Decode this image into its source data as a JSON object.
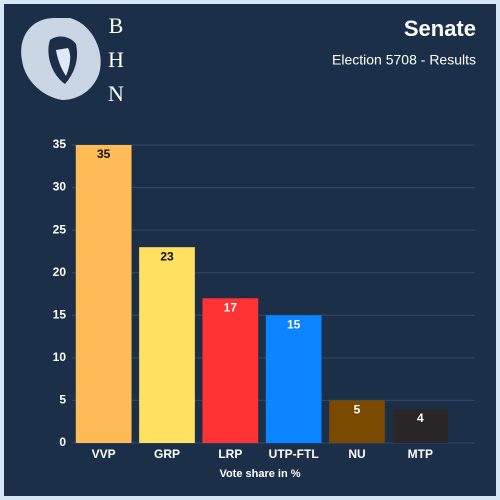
{
  "logo": {
    "letters": [
      "B",
      "H",
      "N"
    ]
  },
  "chart_data": {
    "type": "bar",
    "title": "Senate",
    "subtitle": "Election 5708 - Results",
    "x_label": "Vote share in %",
    "categories": [
      "VVP",
      "GRP",
      "LRP",
      "UTP-FTL",
      "NU",
      "MTP"
    ],
    "values": [
      35,
      23,
      17,
      15,
      5,
      4
    ],
    "colors": [
      "#ffbb55",
      "#ffe060",
      "#ff3333",
      "#0a84ff",
      "#7a4a00",
      "#2a2526"
    ],
    "ylim": [
      0,
      35
    ],
    "yticks": [
      0,
      5,
      10,
      15,
      20,
      25,
      30,
      35
    ],
    "grid": true
  }
}
